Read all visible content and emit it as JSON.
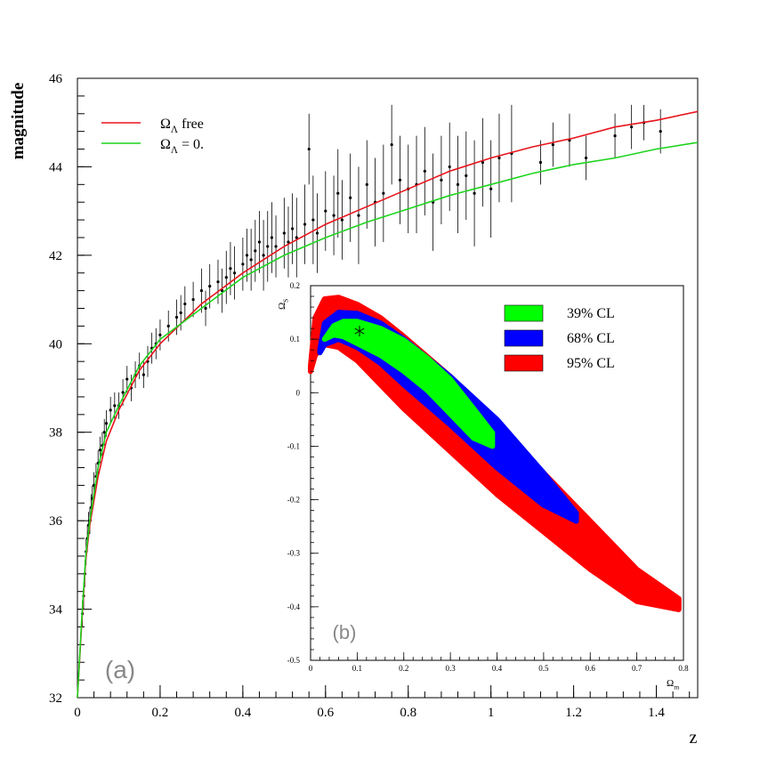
{
  "chart_data": [
    {
      "panel": "a",
      "type": "scatter",
      "title": "",
      "xlabel": "z",
      "ylabel": "magnitude",
      "xlim": [
        0,
        1.5
      ],
      "ylim": [
        32,
        46
      ],
      "x_ticks": [
        "0",
        "0.2",
        "0.4",
        "0.6",
        "0.8",
        "1",
        "1.2",
        "1.4"
      ],
      "y_ticks": [
        "32",
        "34",
        "36",
        "38",
        "40",
        "42",
        "44",
        "46"
      ],
      "grid": false,
      "legend_position": "top-left",
      "panel_label": "(a)",
      "series": [
        {
          "name": "Ω_Λ free",
          "kind": "line",
          "color": "#e8141c",
          "x": [
            0.0,
            0.01,
            0.02,
            0.03,
            0.05,
            0.07,
            0.1,
            0.15,
            0.2,
            0.3,
            0.4,
            0.5,
            0.6,
            0.7,
            0.8,
            0.9,
            1.0,
            1.1,
            1.2,
            1.3,
            1.4,
            1.5
          ],
          "y": [
            32.0,
            33.6,
            35.1,
            35.9,
            37.0,
            37.8,
            38.5,
            39.4,
            40.0,
            40.9,
            41.6,
            42.2,
            42.7,
            43.1,
            43.5,
            43.9,
            44.2,
            44.45,
            44.65,
            44.9,
            45.05,
            45.25
          ]
        },
        {
          "name": "Ω_Λ = 0.",
          "kind": "line",
          "color": "#1ed41e",
          "x": [
            0.0,
            0.01,
            0.02,
            0.03,
            0.05,
            0.07,
            0.1,
            0.15,
            0.2,
            0.3,
            0.4,
            0.5,
            0.6,
            0.7,
            0.8,
            0.9,
            1.0,
            1.1,
            1.2,
            1.3,
            1.4,
            1.5
          ],
          "y": [
            32.0,
            33.7,
            35.2,
            36.0,
            37.2,
            38.0,
            38.6,
            39.5,
            40.1,
            40.8,
            41.5,
            42.0,
            42.4,
            42.75,
            43.05,
            43.35,
            43.6,
            43.85,
            44.05,
            44.2,
            44.4,
            44.55
          ]
        },
        {
          "name": "",
          "kind": "points",
          "color": "#000000",
          "x": [
            0.012,
            0.015,
            0.018,
            0.021,
            0.024,
            0.027,
            0.03,
            0.033,
            0.036,
            0.04,
            0.045,
            0.05,
            0.055,
            0.06,
            0.065,
            0.07,
            0.08,
            0.09,
            0.1,
            0.11,
            0.12,
            0.13,
            0.14,
            0.15,
            0.16,
            0.17,
            0.18,
            0.19,
            0.2,
            0.22,
            0.24,
            0.25,
            0.26,
            0.28,
            0.3,
            0.31,
            0.32,
            0.34,
            0.35,
            0.36,
            0.37,
            0.38,
            0.4,
            0.41,
            0.42,
            0.43,
            0.44,
            0.45,
            0.46,
            0.47,
            0.48,
            0.5,
            0.51,
            0.52,
            0.53,
            0.55,
            0.56,
            0.57,
            0.58,
            0.6,
            0.62,
            0.63,
            0.64,
            0.66,
            0.68,
            0.7,
            0.72,
            0.74,
            0.76,
            0.78,
            0.8,
            0.82,
            0.84,
            0.86,
            0.88,
            0.9,
            0.92,
            0.94,
            0.96,
            0.98,
            1.0,
            1.02,
            1.05,
            1.12,
            1.15,
            1.19,
            1.23,
            1.3,
            1.34,
            1.37,
            1.41
          ],
          "y": [
            33.9,
            34.3,
            34.8,
            35.3,
            35.6,
            35.9,
            36.0,
            36.3,
            36.5,
            36.8,
            37.0,
            37.3,
            37.6,
            37.7,
            38.0,
            38.2,
            38.5,
            38.6,
            38.6,
            38.9,
            39.2,
            39.0,
            39.3,
            39.5,
            39.3,
            39.6,
            39.9,
            40.0,
            40.2,
            40.4,
            40.6,
            40.7,
            40.9,
            41.0,
            41.2,
            40.8,
            41.3,
            41.4,
            41.2,
            41.5,
            41.7,
            41.6,
            41.8,
            42.0,
            41.9,
            42.1,
            42.3,
            42.0,
            42.2,
            42.4,
            42.2,
            42.5,
            42.3,
            42.6,
            42.4,
            42.7,
            44.4,
            42.8,
            42.5,
            43.0,
            42.9,
            43.4,
            42.8,
            43.3,
            42.9,
            43.6,
            43.2,
            43.4,
            44.5,
            43.7,
            43.5,
            43.6,
            43.9,
            43.2,
            43.7,
            44.0,
            43.6,
            43.8,
            43.4,
            44.1,
            43.5,
            44.2,
            44.3,
            44.1,
            44.5,
            44.6,
            44.2,
            44.7,
            44.9,
            45.0,
            44.8
          ],
          "err": [
            0.3,
            0.3,
            0.3,
            0.3,
            0.3,
            0.3,
            0.3,
            0.3,
            0.3,
            0.3,
            0.3,
            0.3,
            0.3,
            0.3,
            0.3,
            0.3,
            0.3,
            0.3,
            0.3,
            0.3,
            0.3,
            0.3,
            0.3,
            0.3,
            0.3,
            0.35,
            0.35,
            0.35,
            0.35,
            0.35,
            0.4,
            0.4,
            0.4,
            0.4,
            0.5,
            0.4,
            0.5,
            0.5,
            0.5,
            0.6,
            0.6,
            0.6,
            0.6,
            0.6,
            0.7,
            0.7,
            0.7,
            0.8,
            0.8,
            0.8,
            0.7,
            0.8,
            0.8,
            0.8,
            0.9,
            0.9,
            0.8,
            1.0,
            0.9,
            0.9,
            0.9,
            1.0,
            0.9,
            1.0,
            1.1,
            1.0,
            1.0,
            1.1,
            0.9,
            1.0,
            1.0,
            1.1,
            1.0,
            1.1,
            1.0,
            1.0,
            1.1,
            1.0,
            1.2,
            1.0,
            1.1,
            1.0,
            1.1,
            0.5,
            0.5,
            0.6,
            0.5,
            0.5,
            0.5,
            0.4,
            0.5
          ]
        }
      ]
    },
    {
      "panel": "b",
      "type": "contour",
      "title": "",
      "xlabel": "Ω_m",
      "ylabel": "Ω_S",
      "xlim": [
        0,
        0.8
      ],
      "ylim": [
        -0.5,
        0.2
      ],
      "x_ticks": [
        "0",
        "0.1",
        "0.2",
        "0.3",
        "0.4",
        "0.5",
        "0.6",
        "0.7",
        "0.8"
      ],
      "y_ticks": [
        "-0.5",
        "-0.4",
        "-0.3",
        "-0.2",
        "-0.1",
        "0",
        "0.1",
        "0.2"
      ],
      "legend_position": "top-right",
      "panel_label": "(b)",
      "best_fit": {
        "x": 0.105,
        "y": 0.115
      },
      "regions": [
        {
          "name": "95% CL",
          "color": "#ff0000",
          "upper": {
            "x": [
              0.0,
              0.01,
              0.03,
              0.06,
              0.1,
              0.15,
              0.2,
              0.3,
              0.4,
              0.5,
              0.6,
              0.7,
              0.79
            ],
            "y": [
              0.05,
              0.14,
              0.175,
              0.178,
              0.165,
              0.14,
              0.105,
              0.03,
              -0.06,
              -0.15,
              -0.24,
              -0.33,
              -0.385
            ]
          },
          "lower": {
            "x": [
              0.0,
              0.01,
              0.03,
              0.06,
              0.1,
              0.15,
              0.2,
              0.3,
              0.4,
              0.5,
              0.6,
              0.7,
              0.79
            ],
            "y": [
              0.04,
              0.07,
              0.09,
              0.085,
              0.06,
              0.015,
              -0.03,
              -0.11,
              -0.19,
              -0.26,
              -0.33,
              -0.39,
              -0.405
            ]
          }
        },
        {
          "name": "68% CL",
          "color": "#0000ff",
          "upper": {
            "x": [
              0.02,
              0.03,
              0.06,
              0.1,
              0.15,
              0.2,
              0.3,
              0.4,
              0.5,
              0.57
            ],
            "y": [
              0.08,
              0.13,
              0.15,
              0.148,
              0.13,
              0.1,
              0.03,
              -0.05,
              -0.15,
              -0.225
            ]
          },
          "lower": {
            "x": [
              0.02,
              0.03,
              0.06,
              0.1,
              0.15,
              0.2,
              0.3,
              0.4,
              0.5,
              0.57
            ],
            "y": [
              0.075,
              0.09,
              0.1,
              0.085,
              0.055,
              0.015,
              -0.06,
              -0.14,
              -0.21,
              -0.24
            ]
          }
        },
        {
          "name": "39% CL",
          "color": "#00ff00",
          "upper": {
            "x": [
              0.03,
              0.05,
              0.07,
              0.1,
              0.15,
              0.2,
              0.25,
              0.3,
              0.35,
              0.39
            ],
            "y": [
              0.1,
              0.125,
              0.133,
              0.133,
              0.12,
              0.098,
              0.065,
              0.025,
              -0.03,
              -0.075
            ]
          },
          "lower": {
            "x": [
              0.03,
              0.05,
              0.07,
              0.1,
              0.15,
              0.2,
              0.25,
              0.3,
              0.35,
              0.39
            ],
            "y": [
              0.1,
              0.108,
              0.105,
              0.092,
              0.07,
              0.04,
              0.005,
              -0.04,
              -0.085,
              -0.1
            ]
          }
        }
      ]
    }
  ]
}
